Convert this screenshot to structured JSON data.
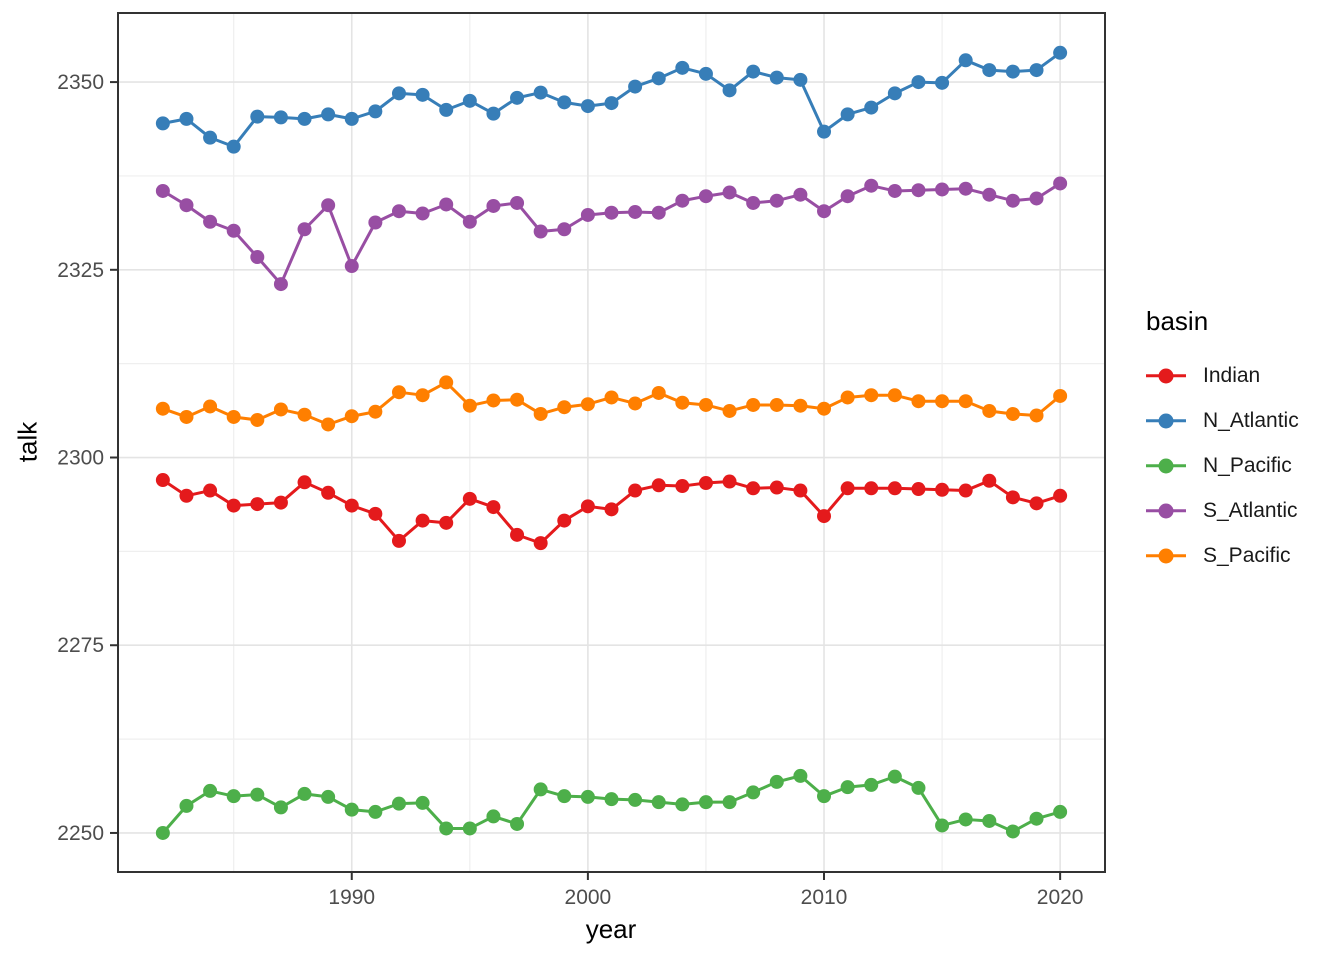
{
  "figure": {
    "x_axis_title": "year",
    "y_axis_title": "talk",
    "legend_title": "basin",
    "background_color": "#ffffff",
    "panel_border_color": "#333333",
    "grid_major_color": "#e4e4e4",
    "grid_minor_color": "#efefef",
    "tick_label_color": "#4d4d4d"
  },
  "chart_data": {
    "type": "line",
    "title": "",
    "xlabel": "year",
    "ylabel": "talk",
    "legend_title": "basin",
    "legend_position": "right",
    "grid": true,
    "xlim": [
      1980.1,
      2021.9
    ],
    "ylim": [
      2244.8,
      2359.2
    ],
    "x_ticks": [
      1990,
      2000,
      2010,
      2020
    ],
    "x_minor_ticks": [
      1985,
      1995,
      2005,
      2015
    ],
    "y_ticks": [
      2250,
      2275,
      2300,
      2325,
      2350
    ],
    "y_minor_ticks": [
      2262.5,
      2287.5,
      2312.5,
      2337.5
    ],
    "x": [
      1982,
      1983,
      1984,
      1985,
      1986,
      1987,
      1988,
      1989,
      1990,
      1991,
      1992,
      1993,
      1994,
      1995,
      1996,
      1997,
      1998,
      1999,
      2000,
      2001,
      2002,
      2003,
      2004,
      2005,
      2006,
      2007,
      2008,
      2009,
      2010,
      2011,
      2012,
      2013,
      2014,
      2015,
      2016,
      2017,
      2018,
      2019,
      2020
    ],
    "series": [
      {
        "name": "Indian",
        "color": "#E41A1C",
        "values": [
          2297.0,
          2294.9,
          2295.6,
          2293.6,
          2293.8,
          2294.0,
          2296.7,
          2295.3,
          2293.6,
          2292.5,
          2288.9,
          2291.6,
          2291.3,
          2294.5,
          2293.4,
          2289.7,
          2288.6,
          2291.6,
          2293.5,
          2293.1,
          2295.6,
          2296.3,
          2296.2,
          2296.6,
          2296.8,
          2295.9,
          2296.0,
          2295.6,
          2292.2,
          2295.9,
          2295.9,
          2295.9,
          2295.8,
          2295.7,
          2295.6,
          2296.9,
          2294.7,
          2293.9,
          2294.9
        ]
      },
      {
        "name": "N_Atlantic",
        "color": "#377EB8",
        "values": [
          2344.5,
          2345.1,
          2342.6,
          2341.4,
          2345.4,
          2345.3,
          2345.1,
          2345.7,
          2345.1,
          2346.1,
          2348.5,
          2348.3,
          2346.3,
          2347.5,
          2345.8,
          2347.9,
          2348.6,
          2347.3,
          2346.8,
          2347.2,
          2349.4,
          2350.5,
          2351.9,
          2351.1,
          2348.9,
          2351.4,
          2350.6,
          2350.3,
          2343.4,
          2345.7,
          2346.6,
          2348.5,
          2350.0,
          2349.9,
          2352.9,
          2351.6,
          2351.4,
          2351.6,
          2353.9
        ]
      },
      {
        "name": "N_Pacific",
        "color": "#4DAF4A",
        "values": [
          2250.0,
          2253.6,
          2255.6,
          2254.9,
          2255.1,
          2253.4,
          2255.2,
          2254.8,
          2253.1,
          2252.8,
          2253.9,
          2254.0,
          2250.6,
          2250.6,
          2252.2,
          2251.2,
          2255.8,
          2254.9,
          2254.8,
          2254.5,
          2254.4,
          2254.1,
          2253.8,
          2254.1,
          2254.1,
          2255.4,
          2256.8,
          2257.6,
          2254.9,
          2256.1,
          2256.4,
          2257.5,
          2256.0,
          2251.0,
          2251.8,
          2251.6,
          2250.2,
          2251.9,
          2252.8
        ]
      },
      {
        "name": "S_Atlantic",
        "color": "#984EA3",
        "values": [
          2335.5,
          2333.6,
          2331.4,
          2330.2,
          2326.7,
          2323.1,
          2330.4,
          2333.6,
          2325.5,
          2331.3,
          2332.8,
          2332.5,
          2333.7,
          2331.4,
          2333.5,
          2333.9,
          2330.1,
          2330.4,
          2332.3,
          2332.6,
          2332.7,
          2332.6,
          2334.2,
          2334.8,
          2335.3,
          2333.9,
          2334.2,
          2335.0,
          2332.8,
          2334.8,
          2336.2,
          2335.5,
          2335.6,
          2335.7,
          2335.8,
          2335.0,
          2334.2,
          2334.5,
          2336.5
        ]
      },
      {
        "name": "S_Pacific",
        "color": "#FF7F00",
        "values": [
          2306.5,
          2305.4,
          2306.8,
          2305.4,
          2305.0,
          2306.4,
          2305.7,
          2304.4,
          2305.5,
          2306.1,
          2308.7,
          2308.3,
          2310.0,
          2306.9,
          2307.6,
          2307.7,
          2305.8,
          2306.7,
          2307.1,
          2308.0,
          2307.2,
          2308.6,
          2307.3,
          2307.0,
          2306.2,
          2307.0,
          2307.0,
          2306.9,
          2306.5,
          2308.0,
          2308.3,
          2308.3,
          2307.5,
          2307.5,
          2307.5,
          2306.2,
          2305.8,
          2305.6,
          2308.2
        ]
      }
    ]
  }
}
